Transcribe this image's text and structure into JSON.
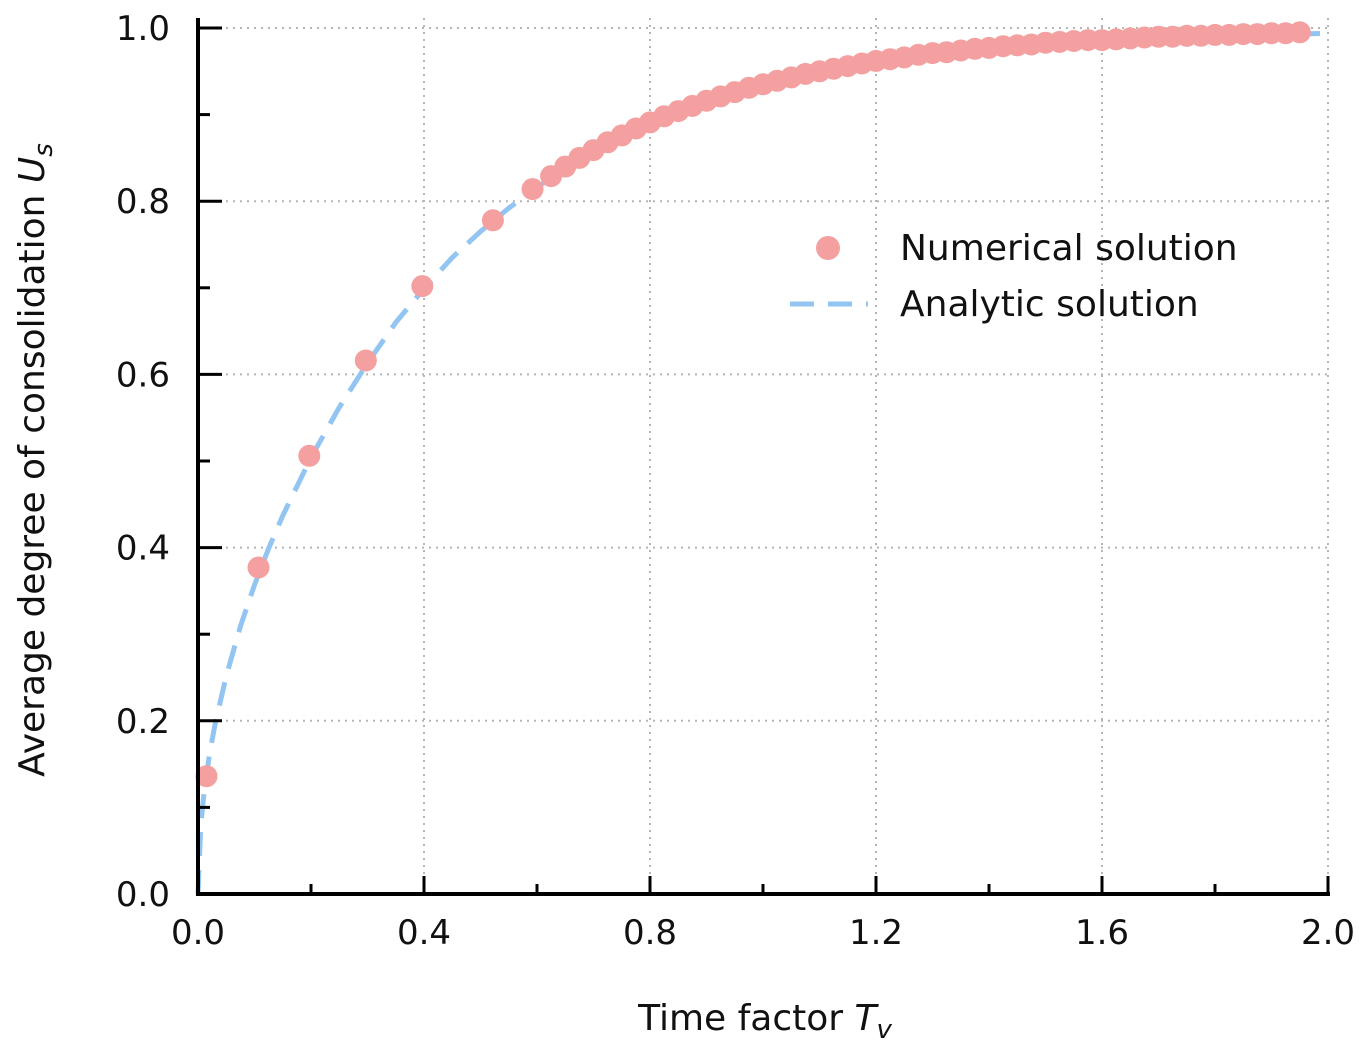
{
  "chart_data": {
    "type": "scatter",
    "xlabel": "Time factor",
    "xlabel_symbol": "T",
    "xlabel_sub": "v",
    "ylabel": "Average degree of consolidation",
    "ylabel_symbol": "U",
    "ylabel_sub": "s",
    "xlim": [
      0.0,
      2.0
    ],
    "ylim": [
      0.0,
      1.0
    ],
    "xticks": [
      "0.0",
      "0.4",
      "0.8",
      "1.2",
      "1.6",
      "2.0"
    ],
    "yticks": [
      "0.0",
      "0.2",
      "0.4",
      "0.6",
      "0.8",
      "1.0"
    ],
    "grid": true,
    "legend_position": "right",
    "colors": {
      "numerical": "#f4a0a0",
      "analytic": "#92c5f2"
    },
    "series": [
      {
        "name": "Numerical solution",
        "kind": "scatter",
        "x": [
          0.015,
          0.107,
          0.197,
          0.297,
          0.397,
          0.522,
          0.592,
          0.625,
          0.65,
          0.675,
          0.7,
          0.725,
          0.75,
          0.775,
          0.8,
          0.825,
          0.85,
          0.875,
          0.9,
          0.925,
          0.95,
          0.975,
          1.0,
          1.025,
          1.05,
          1.075,
          1.1,
          1.125,
          1.15,
          1.175,
          1.2,
          1.225,
          1.25,
          1.275,
          1.3,
          1.325,
          1.35,
          1.375,
          1.4,
          1.425,
          1.45,
          1.475,
          1.5,
          1.525,
          1.55,
          1.575,
          1.6,
          1.625,
          1.65,
          1.675,
          1.7,
          1.725,
          1.75,
          1.775,
          1.8,
          1.825,
          1.85,
          1.875,
          1.9,
          1.925,
          1.95
        ],
        "y": [
          0.136,
          0.377,
          0.506,
          0.616,
          0.702,
          0.778,
          0.814,
          0.829,
          0.84,
          0.85,
          0.859,
          0.868,
          0.876,
          0.884,
          0.891,
          0.898,
          0.904,
          0.91,
          0.916,
          0.921,
          0.926,
          0.931,
          0.935,
          0.939,
          0.943,
          0.947,
          0.95,
          0.953,
          0.956,
          0.959,
          0.962,
          0.964,
          0.966,
          0.969,
          0.971,
          0.972,
          0.974,
          0.976,
          0.977,
          0.979,
          0.98,
          0.981,
          0.983,
          0.984,
          0.985,
          0.986,
          0.986,
          0.987,
          0.988,
          0.989,
          0.99,
          0.99,
          0.991,
          0.991,
          0.992,
          0.992,
          0.993,
          0.993,
          0.994,
          0.994,
          0.995
        ]
      },
      {
        "name": "Analytic solution",
        "kind": "line",
        "style": "dashed",
        "x": [
          0.0,
          0.005,
          0.01,
          0.02,
          0.03,
          0.05,
          0.075,
          0.1,
          0.125,
          0.15,
          0.2,
          0.25,
          0.3,
          0.35,
          0.4,
          0.45,
          0.5,
          0.55,
          0.6,
          0.65,
          0.7,
          0.75,
          0.8,
          0.85,
          0.9,
          0.95,
          1.0,
          1.1,
          1.2,
          1.3,
          1.4,
          1.5,
          1.6,
          1.7,
          1.8,
          1.9,
          2.0
        ],
        "y": [
          0.0,
          0.08,
          0.113,
          0.16,
          0.195,
          0.252,
          0.309,
          0.357,
          0.399,
          0.437,
          0.504,
          0.562,
          0.613,
          0.66,
          0.699,
          0.735,
          0.765,
          0.792,
          0.816,
          0.838,
          0.857,
          0.873,
          0.887,
          0.9,
          0.912,
          0.922,
          0.93,
          0.945,
          0.957,
          0.966,
          0.973,
          0.979,
          0.983,
          0.987,
          0.99,
          0.992,
          0.994
        ]
      }
    ]
  }
}
